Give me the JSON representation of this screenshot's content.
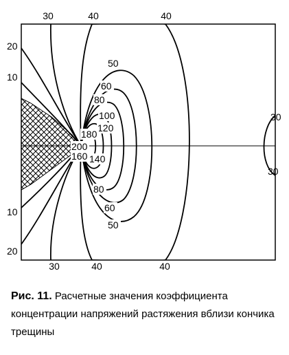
{
  "figure": {
    "top_labels": [
      "30",
      "40",
      "40"
    ],
    "bottom_labels": [
      "30",
      "40",
      "40"
    ],
    "left_labels": [
      "20",
      "10",
      "10",
      "20"
    ],
    "right_labels": [
      "30",
      "30"
    ],
    "contour_labels": [
      "50",
      "60",
      "80",
      "100",
      "120",
      "180",
      "200",
      "160",
      "140",
      "80",
      "60",
      "50"
    ]
  },
  "caption": {
    "label": "Рис. 11.",
    "text": "Расчетные значения коэффициента концентрации напряжений растяжения вблизи кончика трещины"
  }
}
